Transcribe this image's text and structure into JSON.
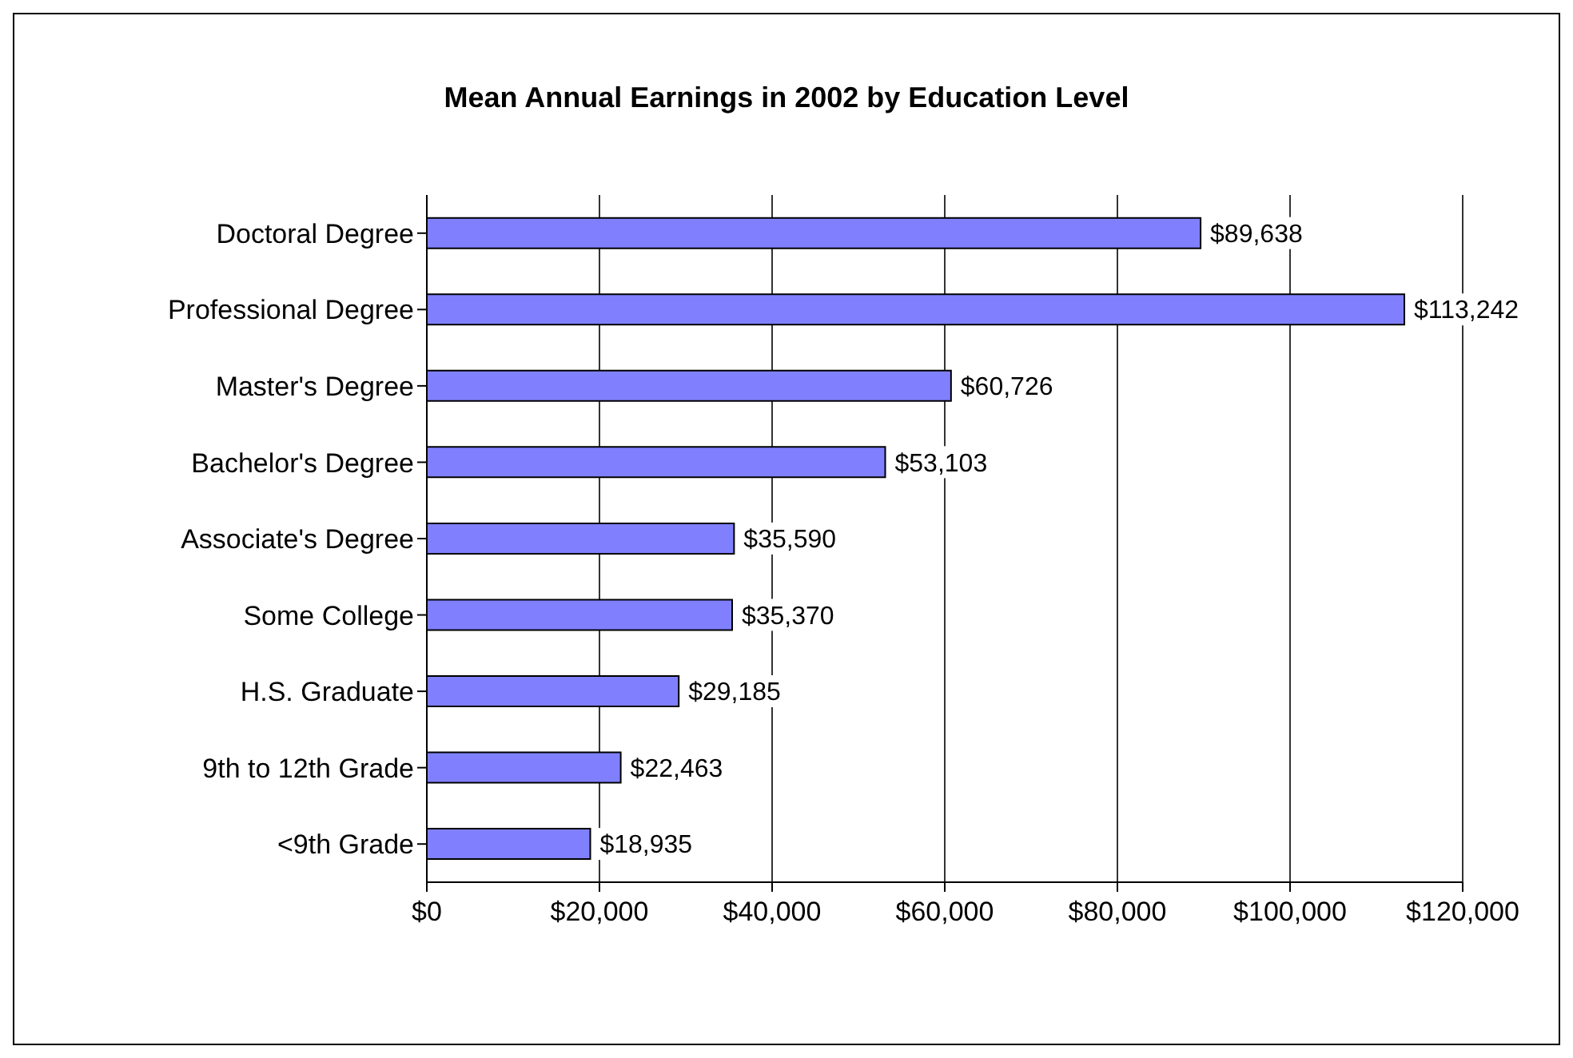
{
  "chart_data": {
    "type": "bar",
    "orientation": "horizontal",
    "title": "Mean Annual Earnings in 2002 by Education Level",
    "categories": [
      "Doctoral Degree",
      "Professional Degree",
      "Master's Degree",
      "Bachelor's Degree",
      "Associate's Degree",
      "Some College",
      "H.S. Graduate",
      "9th to 12th Grade",
      "<9th Grade"
    ],
    "values": [
      89638,
      113242,
      60726,
      53103,
      35590,
      35370,
      29185,
      22463,
      18935
    ],
    "value_labels": [
      "$89,638",
      "$113,242",
      "$60,726",
      "$53,103",
      "$35,590",
      "$35,370",
      "$29,185",
      "$22,463",
      "$18,935"
    ],
    "color": "#8080ff",
    "xlim": [
      0,
      120000
    ],
    "xticks": [
      {
        "value": 0,
        "label": "$0"
      },
      {
        "value": 20000,
        "label": "$20,000"
      },
      {
        "value": 40000,
        "label": "$40,000"
      },
      {
        "value": 60000,
        "label": "$60,000"
      },
      {
        "value": 80000,
        "label": "$80,000"
      },
      {
        "value": 100000,
        "label": "$100,000"
      },
      {
        "value": 120000,
        "label": "$120,000"
      }
    ],
    "grid": "x"
  }
}
